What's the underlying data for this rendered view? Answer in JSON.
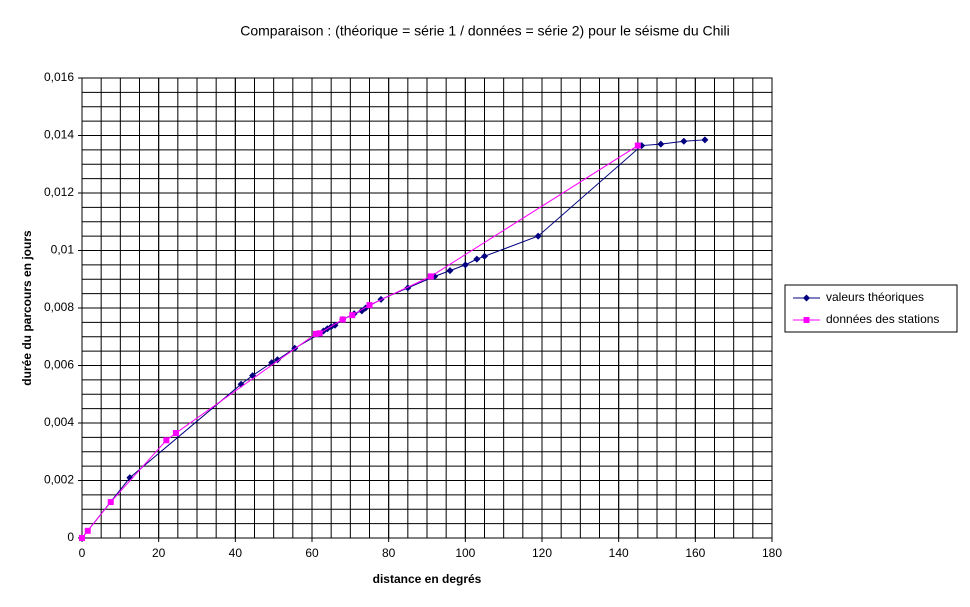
{
  "chart_data": {
    "type": "scatter",
    "title": "Comparaison : (théorique = série 1 / données = série 2) pour le séisme du Chili",
    "x_label": "distance en degrés",
    "y_label": "durée du parcours en jours",
    "xlim": [
      0,
      180
    ],
    "xticks": [
      0,
      20,
      40,
      60,
      80,
      100,
      120,
      140,
      160,
      180
    ],
    "ylim": [
      0,
      0.016
    ],
    "yticks": [
      0,
      {
        "value": 0.002,
        "label": "0,002"
      },
      {
        "value": 0.004,
        "label": "0,004"
      },
      {
        "value": 0.006,
        "label": "0,006"
      },
      {
        "value": 0.008,
        "label": "0,008"
      },
      {
        "value": 0.01,
        "label": "0,01"
      },
      {
        "value": 0.012,
        "label": "0,012"
      },
      {
        "value": 0.014,
        "label": "0,014"
      },
      {
        "value": 0.016,
        "label": "0,016"
      }
    ],
    "grid": true,
    "minor_grid": {
      "x": 5,
      "y": 0.0005
    },
    "legend": "right",
    "series": [
      {
        "name": "valeurs théoriques",
        "color": "#000080",
        "marker": "diamond",
        "x": [
          0,
          12.5,
          41.5,
          44.5,
          49.5,
          51,
          55.5,
          62,
          63,
          64,
          65,
          66,
          68,
          71,
          73,
          74,
          78,
          85,
          92,
          96,
          100,
          103,
          105,
          119,
          146,
          151,
          157,
          162.5
        ],
        "values": [
          0,
          0.0021,
          0.00535,
          0.00565,
          0.0061,
          0.0062,
          0.0066,
          0.0071,
          0.0072,
          0.00728,
          0.00735,
          0.0074,
          0.0076,
          0.0078,
          0.0079,
          0.008,
          0.0083,
          0.0087,
          0.0091,
          0.0093,
          0.0095,
          0.0097,
          0.0098,
          0.0105,
          0.01365,
          0.0137,
          0.0138,
          0.01385
        ]
      },
      {
        "name": "données des stations",
        "color": "#ff00ff",
        "marker": "square",
        "x": [
          0,
          1.5,
          7.5,
          22,
          24.5,
          61,
          62,
          68,
          70.5,
          75,
          91,
          145
        ],
        "values": [
          0,
          0.00025,
          0.00125,
          0.0034,
          0.00365,
          0.0071,
          0.00712,
          0.0076,
          0.00775,
          0.0081,
          0.0091,
          0.01365
        ]
      }
    ]
  }
}
